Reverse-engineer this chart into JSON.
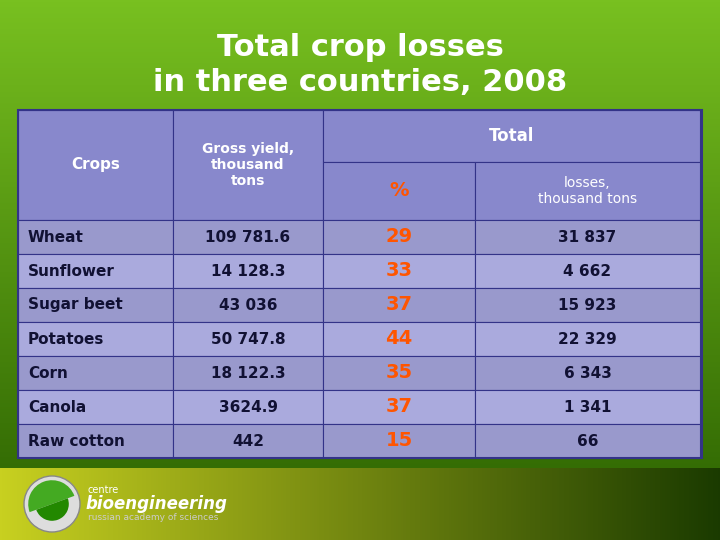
{
  "title_line1": "Total crop losses",
  "title_line2": "in three countries, 2008",
  "title_color": "#ffffff",
  "title_fontsize": 22,
  "crops": [
    "Wheat",
    "Sunflower",
    "Sugar beet",
    "Potatoes",
    "Corn",
    "Canola",
    "Raw cotton"
  ],
  "gross_yield": [
    "109 781.6",
    "14 128.3",
    "43 036",
    "50 747.8",
    "18 122.3",
    "3624.9",
    "442"
  ],
  "pct_losses": [
    "29",
    "33",
    "37",
    "44",
    "35",
    "37",
    "15"
  ],
  "losses_kt": [
    "31 837",
    "4 662",
    "15 923",
    "22 329",
    "6 343",
    "1 341",
    "66"
  ],
  "col1_header": "Crops",
  "col2_header": "Gross yield,\nthousand\ntons",
  "col3_header": "Total",
  "col3a_header": "%",
  "col3b_header": "losses,\nthousand tons",
  "header_text_color": "#ffffff",
  "pct_color": "#ff5500",
  "data_text_color": "#111133",
  "header_color": "#8888cc",
  "row_color_even": "#9999cc",
  "row_color_odd": "#aaaadd",
  "border_color": "#333388",
  "header_fontsize": 10,
  "data_fontsize": 11,
  "bg_top": "#78c020",
  "bg_bottom": "#2a6000",
  "logo_bg_left": "#c8d020",
  "logo_bg_right": "#1a3a00"
}
